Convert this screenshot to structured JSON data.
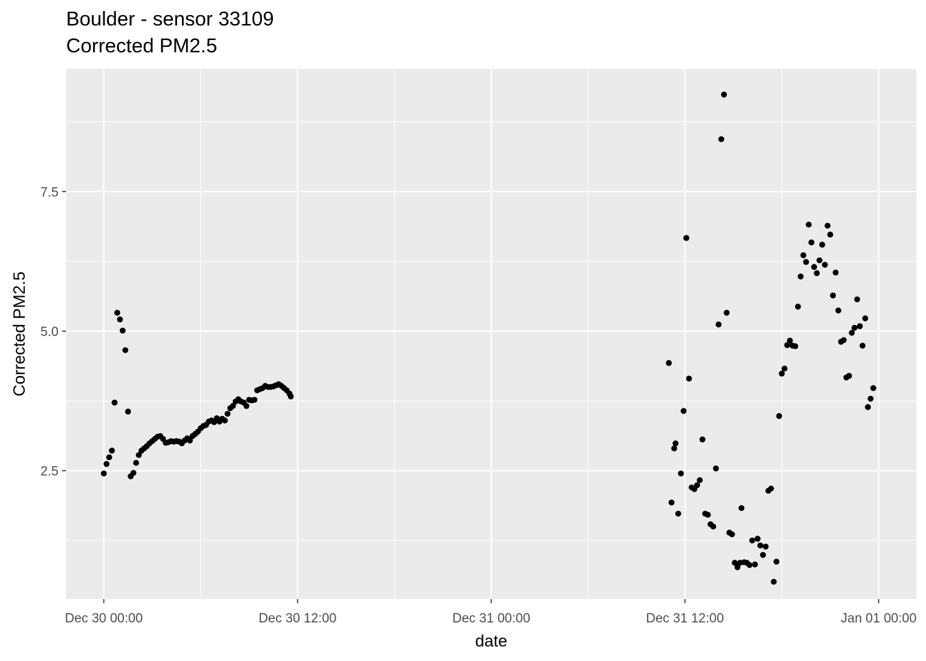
{
  "chart_data": {
    "type": "scatter",
    "title": "Boulder - sensor 33109",
    "subtitle": "Corrected PM2.5",
    "xlabel": "date",
    "ylabel": "Corrected PM2.5",
    "x_ticks": [
      "Dec 30 00:00",
      "Dec 30 12:00",
      "Dec 31 00:00",
      "Dec 31 12:00",
      "Jan 01 00:00"
    ],
    "y_ticks": [
      2.5,
      5.0,
      7.5
    ],
    "y_tick_labels": [
      "2.5",
      "5.0",
      "7.5"
    ],
    "xlim": [
      "Dec 29 21:40",
      "Jan 01 02:20"
    ],
    "ylim": [
      0.2,
      9.7
    ],
    "grid": true,
    "point_color": "#000000",
    "panel_color": "#ebebeb",
    "grid_color": "#ffffff",
    "x_time_format": "Dec DD HH:MM",
    "points": [
      [
        "Dec 30 00:00",
        2.45
      ],
      [
        "Dec 30 00:10",
        2.62
      ],
      [
        "Dec 30 00:20",
        2.74
      ],
      [
        "Dec 30 00:30",
        2.86
      ],
      [
        "Dec 30 00:40",
        3.72
      ],
      [
        "Dec 30 00:50",
        5.33
      ],
      [
        "Dec 30 01:00",
        5.21
      ],
      [
        "Dec 30 01:10",
        5.01
      ],
      [
        "Dec 30 01:20",
        4.66
      ],
      [
        "Dec 30 01:30",
        3.56
      ],
      [
        "Dec 30 01:40",
        2.4
      ],
      [
        "Dec 30 01:50",
        2.46
      ],
      [
        "Dec 30 02:00",
        2.64
      ],
      [
        "Dec 30 02:10",
        2.78
      ],
      [
        "Dec 30 02:20",
        2.86
      ],
      [
        "Dec 30 02:30",
        2.9
      ],
      [
        "Dec 30 02:40",
        2.94
      ],
      [
        "Dec 30 02:50",
        2.99
      ],
      [
        "Dec 30 03:00",
        3.03
      ],
      [
        "Dec 30 03:10",
        3.07
      ],
      [
        "Dec 30 03:20",
        3.11
      ],
      [
        "Dec 30 03:30",
        3.12
      ],
      [
        "Dec 30 03:40",
        3.07
      ],
      [
        "Dec 30 03:50",
        3.0
      ],
      [
        "Dec 30 04:00",
        3.01
      ],
      [
        "Dec 30 04:10",
        3.03
      ],
      [
        "Dec 30 04:20",
        3.02
      ],
      [
        "Dec 30 04:30",
        3.03
      ],
      [
        "Dec 30 04:40",
        3.02
      ],
      [
        "Dec 30 04:50",
        2.99
      ],
      [
        "Dec 30 05:00",
        3.04
      ],
      [
        "Dec 30 05:10",
        3.08
      ],
      [
        "Dec 30 05:20",
        3.04
      ],
      [
        "Dec 30 05:30",
        3.12
      ],
      [
        "Dec 30 05:40",
        3.16
      ],
      [
        "Dec 30 05:50",
        3.2
      ],
      [
        "Dec 30 06:00",
        3.26
      ],
      [
        "Dec 30 06:10",
        3.3
      ],
      [
        "Dec 30 06:20",
        3.32
      ],
      [
        "Dec 30 06:30",
        3.38
      ],
      [
        "Dec 30 06:40",
        3.4
      ],
      [
        "Dec 30 06:50",
        3.37
      ],
      [
        "Dec 30 07:00",
        3.44
      ],
      [
        "Dec 30 07:10",
        3.38
      ],
      [
        "Dec 30 07:20",
        3.43
      ],
      [
        "Dec 30 07:30",
        3.4
      ],
      [
        "Dec 30 07:40",
        3.52
      ],
      [
        "Dec 30 07:50",
        3.62
      ],
      [
        "Dec 30 08:00",
        3.66
      ],
      [
        "Dec 30 08:10",
        3.74
      ],
      [
        "Dec 30 08:20",
        3.78
      ],
      [
        "Dec 30 08:30",
        3.74
      ],
      [
        "Dec 30 08:40",
        3.72
      ],
      [
        "Dec 30 08:50",
        3.66
      ],
      [
        "Dec 30 09:00",
        3.77
      ],
      [
        "Dec 30 09:10",
        3.76
      ],
      [
        "Dec 30 09:20",
        3.77
      ],
      [
        "Dec 30 09:30",
        3.94
      ],
      [
        "Dec 30 09:40",
        3.96
      ],
      [
        "Dec 30 09:50",
        3.98
      ],
      [
        "Dec 30 10:00",
        4.02
      ],
      [
        "Dec 30 10:10",
        4.0
      ],
      [
        "Dec 30 10:20",
        4.0
      ],
      [
        "Dec 30 10:30",
        4.01
      ],
      [
        "Dec 30 10:40",
        4.03
      ],
      [
        "Dec 30 10:50",
        4.05
      ],
      [
        "Dec 30 11:00",
        4.02
      ],
      [
        "Dec 30 11:10",
        3.98
      ],
      [
        "Dec 30 11:20",
        3.94
      ],
      [
        "Dec 30 11:30",
        3.88
      ],
      [
        "Dec 30 11:35",
        3.83
      ],
      [
        "Dec 31 11:00",
        4.43
      ],
      [
        "Dec 31 11:10",
        1.93
      ],
      [
        "Dec 31 11:20",
        2.9
      ],
      [
        "Dec 31 11:25",
        2.99
      ],
      [
        "Dec 31 11:35",
        1.73
      ],
      [
        "Dec 31 11:45",
        2.45
      ],
      [
        "Dec 31 11:55",
        3.57
      ],
      [
        "Dec 31 12:05",
        6.67
      ],
      [
        "Dec 31 12:15",
        4.15
      ],
      [
        "Dec 31 12:25",
        2.2
      ],
      [
        "Dec 31 12:35",
        2.17
      ],
      [
        "Dec 31 12:45",
        2.24
      ],
      [
        "Dec 31 12:55",
        2.33
      ],
      [
        "Dec 31 13:05",
        3.06
      ],
      [
        "Dec 31 13:15",
        1.73
      ],
      [
        "Dec 31 13:25",
        1.71
      ],
      [
        "Dec 31 13:35",
        1.54
      ],
      [
        "Dec 31 13:45",
        1.5
      ],
      [
        "Dec 31 13:55",
        2.54
      ],
      [
        "Dec 31 14:05",
        5.12
      ],
      [
        "Dec 31 14:15",
        8.44
      ],
      [
        "Dec 31 14:25",
        9.24
      ],
      [
        "Dec 31 14:35",
        5.33
      ],
      [
        "Dec 31 14:45",
        1.39
      ],
      [
        "Dec 31 14:55",
        1.36
      ],
      [
        "Dec 31 15:05",
        0.85
      ],
      [
        "Dec 31 15:15",
        0.77
      ],
      [
        "Dec 31 15:25",
        0.85
      ],
      [
        "Dec 31 15:30",
        1.83
      ],
      [
        "Dec 31 15:40",
        0.86
      ],
      [
        "Dec 31 15:50",
        0.85
      ],
      [
        "Dec 31 16:00",
        0.81
      ],
      [
        "Dec 31 16:10",
        1.25
      ],
      [
        "Dec 31 16:20",
        0.82
      ],
      [
        "Dec 31 16:30",
        1.28
      ],
      [
        "Dec 31 16:40",
        1.16
      ],
      [
        "Dec 31 16:50",
        0.99
      ],
      [
        "Dec 31 17:00",
        1.14
      ],
      [
        "Dec 31 17:10",
        2.14
      ],
      [
        "Dec 31 17:20",
        2.18
      ],
      [
        "Dec 31 17:30",
        0.51
      ],
      [
        "Dec 31 17:40",
        0.87
      ],
      [
        "Dec 31 17:50",
        3.48
      ],
      [
        "Dec 31 18:00",
        4.24
      ],
      [
        "Dec 31 18:10",
        4.33
      ],
      [
        "Dec 31 18:20",
        4.75
      ],
      [
        "Dec 31 18:30",
        4.83
      ],
      [
        "Dec 31 18:40",
        4.74
      ],
      [
        "Dec 31 18:50",
        4.73
      ],
      [
        "Dec 31 19:00",
        5.44
      ],
      [
        "Dec 31 19:10",
        5.98
      ],
      [
        "Dec 31 19:20",
        6.36
      ],
      [
        "Dec 31 19:30",
        6.24
      ],
      [
        "Dec 31 19:40",
        6.91
      ],
      [
        "Dec 31 19:50",
        6.59
      ],
      [
        "Dec 31 20:00",
        6.15
      ],
      [
        "Dec 31 20:10",
        6.04
      ],
      [
        "Dec 31 20:20",
        6.27
      ],
      [
        "Dec 31 20:30",
        6.55
      ],
      [
        "Dec 31 20:40",
        6.19
      ],
      [
        "Dec 31 20:50",
        6.89
      ],
      [
        "Dec 31 21:00",
        6.73
      ],
      [
        "Dec 31 21:10",
        5.64
      ],
      [
        "Dec 31 21:20",
        6.05
      ],
      [
        "Dec 31 21:30",
        5.37
      ],
      [
        "Dec 31 21:40",
        4.81
      ],
      [
        "Dec 31 21:50",
        4.84
      ],
      [
        "Dec 31 22:00",
        4.17
      ],
      [
        "Dec 31 22:10",
        4.2
      ],
      [
        "Dec 31 22:20",
        4.97
      ],
      [
        "Dec 31 22:30",
        5.06
      ],
      [
        "Dec 31 22:40",
        5.57
      ],
      [
        "Dec 31 22:50",
        5.09
      ],
      [
        "Dec 31 23:00",
        4.74
      ],
      [
        "Dec 31 23:10",
        5.23
      ],
      [
        "Dec 31 23:20",
        3.64
      ],
      [
        "Dec 31 23:30",
        3.79
      ],
      [
        "Dec 31 23:40",
        3.98
      ]
    ]
  }
}
